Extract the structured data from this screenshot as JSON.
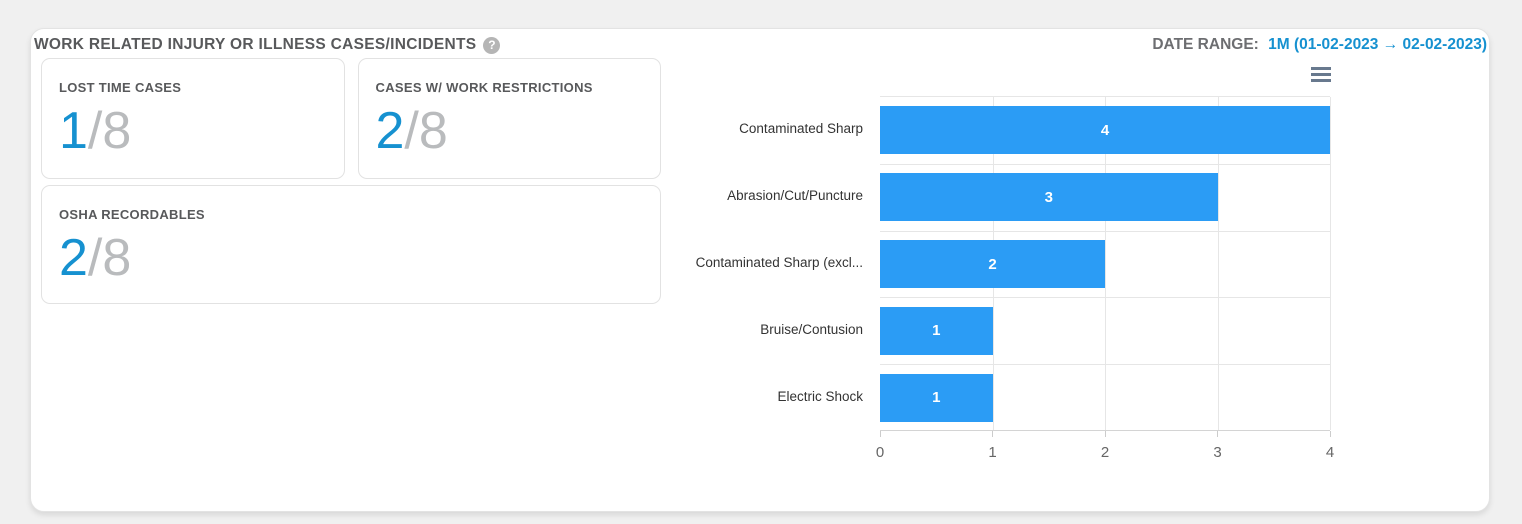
{
  "header": {
    "title": "WORK RELATED INJURY OR ILLNESS CASES/INCIDENTS",
    "help_icon": "?",
    "date_range_label": "DATE RANGE:",
    "date_range_value": "1M (01-02-2023 → 02-02-2023)"
  },
  "stats": {
    "cards": [
      {
        "label": "LOST TIME CASES",
        "value": "1",
        "total": "/8"
      },
      {
        "label": "CASES W/ WORK RESTRICTIONS",
        "value": "2",
        "total": "/8"
      },
      {
        "label": "OSHA RECORDABLES",
        "value": "2",
        "total": "/8"
      }
    ]
  },
  "chart_data": {
    "type": "bar",
    "orientation": "horizontal",
    "categories": [
      "Contaminated Sharp",
      "Abrasion/Cut/Puncture",
      "Contaminated Sharp (excl...",
      "Bruise/Contusion",
      "Electric Shock"
    ],
    "values": [
      4,
      3,
      2,
      1,
      1
    ],
    "xlim": [
      0,
      4
    ],
    "x_ticks": [
      0,
      1,
      2,
      3,
      4
    ],
    "data_labels": true,
    "grid": true,
    "legend": "none",
    "bar_color": "#2b9cf5",
    "menu_icon": "hamburger-icon"
  },
  "colors": {
    "accent_blue": "#1691d0",
    "bar_blue": "#2b9cf5",
    "value_total_gray": "#b9bbbd",
    "heading_gray": "#58595b"
  }
}
